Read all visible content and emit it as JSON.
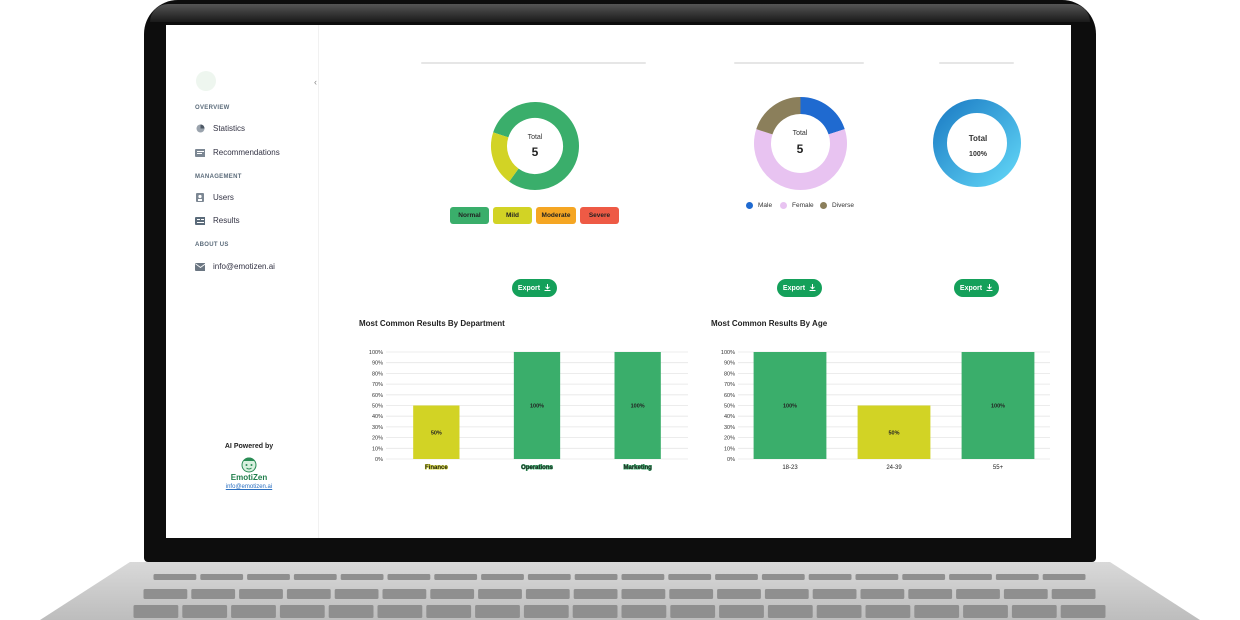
{
  "sidebar": {
    "sections": [
      {
        "title": "OVERVIEW",
        "items": [
          {
            "label": "Statistics",
            "icon": "stats-icon"
          },
          {
            "label": "Recommendations",
            "icon": "recommendations-icon"
          }
        ]
      },
      {
        "title": "MANAGEMENT",
        "items": [
          {
            "label": "Users",
            "icon": "user-icon"
          },
          {
            "label": "Results",
            "icon": "results-icon"
          }
        ]
      },
      {
        "title": "ABOUT US",
        "items": [
          {
            "label": "info@emotizen.ai",
            "icon": "mail-icon"
          }
        ]
      }
    ],
    "collapse_icon": "chevron-left-icon",
    "footer": {
      "powered_by": "AI Powered by",
      "brand": "EmotiZen",
      "email": "info@emotizen.ai"
    }
  },
  "donuts": [
    {
      "label": "Total",
      "value": "5",
      "segments": [
        {
          "name": "Normal",
          "value": 4,
          "color": "#3aae6b"
        },
        {
          "name": "Mild",
          "value": 1,
          "color": "#d2d325"
        }
      ],
      "pills": [
        {
          "label": "Normal",
          "color": "#3aae6b"
        },
        {
          "label": "Mild",
          "color": "#d2d325"
        },
        {
          "label": "Moderate",
          "color": "#f5a623"
        },
        {
          "label": "Severe",
          "color": "#ee5a45"
        }
      ]
    },
    {
      "label": "Total",
      "value": "5",
      "segments": [
        {
          "name": "Male",
          "value": 1,
          "color": "#1f6ad0"
        },
        {
          "name": "Female",
          "value": 3,
          "color": "#e8c3f1"
        },
        {
          "name": "Diverse",
          "value": 1,
          "color": "#8b7f5b"
        }
      ],
      "legend": [
        {
          "label": "Male",
          "color": "#1f6ad0"
        },
        {
          "label": "Female",
          "color": "#e8c3f1"
        },
        {
          "label": "Diverse",
          "color": "#8b7f5b"
        }
      ]
    },
    {
      "label": "Total",
      "value": "100%",
      "segments": [
        {
          "name": "Total",
          "value": 1,
          "color": "#29a9e0"
        }
      ]
    }
  ],
  "export_label": "Export",
  "charts_titles": {
    "dept": "Most Common Results By Department",
    "age": "Most Common Results By Age"
  },
  "chart_data": [
    {
      "type": "bar",
      "title": "Most Common Results By Department",
      "categories": [
        "Finance",
        "Operations",
        "Marketing"
      ],
      "values": [
        50,
        100,
        100
      ],
      "data_labels": [
        "50%",
        "100%",
        "100%"
      ],
      "colors": [
        "#d2d325",
        "#3aae6b",
        "#3aae6b"
      ],
      "yticks": [
        "0%",
        "10%",
        "20%",
        "30%",
        "40%",
        "50%",
        "60%",
        "70%",
        "80%",
        "90%",
        "100%"
      ],
      "ylim": [
        0,
        100
      ],
      "grid": true
    },
    {
      "type": "bar",
      "title": "Most Common Results By Age",
      "categories": [
        "18-23",
        "24-39",
        "55+"
      ],
      "values": [
        100,
        50,
        100
      ],
      "data_labels": [
        "100%",
        "50%",
        "100%"
      ],
      "colors": [
        "#3aae6b",
        "#d2d325",
        "#3aae6b"
      ],
      "yticks": [
        "0%",
        "10%",
        "20%",
        "30%",
        "40%",
        "50%",
        "60%",
        "70%",
        "80%",
        "90%",
        "100%"
      ],
      "ylim": [
        0,
        100
      ],
      "grid": true
    }
  ]
}
